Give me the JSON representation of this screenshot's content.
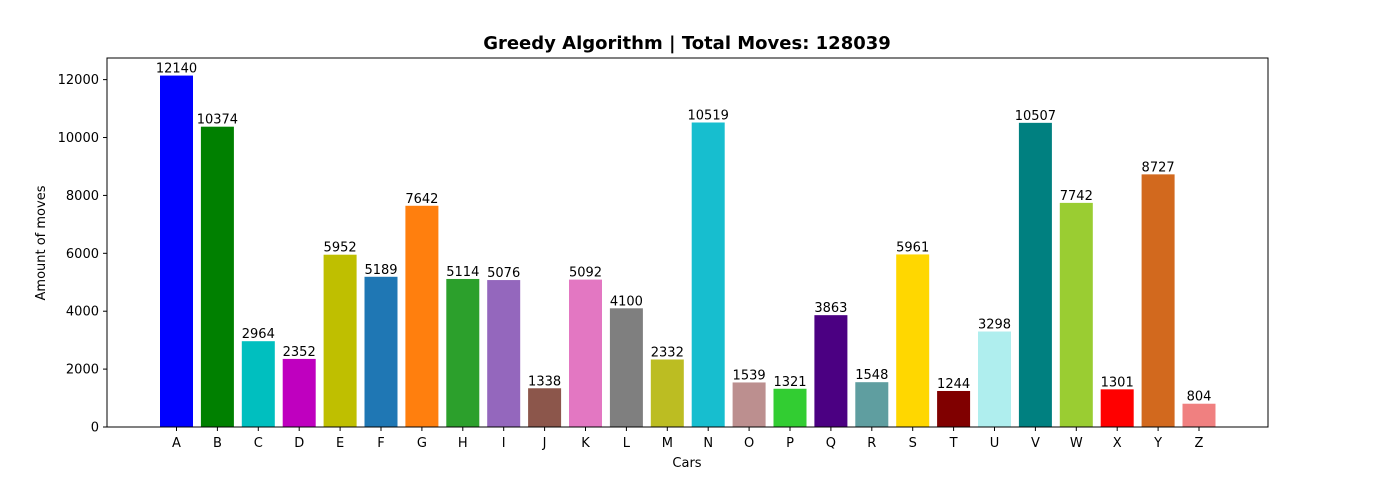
{
  "chart_data": {
    "type": "bar",
    "title": "Greedy Algorithm | Total Moves: 128039",
    "xlabel": "Cars",
    "ylabel": "Amount of moves",
    "categories": [
      "A",
      "B",
      "C",
      "D",
      "E",
      "F",
      "G",
      "H",
      "I",
      "J",
      "K",
      "L",
      "M",
      "N",
      "O",
      "P",
      "Q",
      "R",
      "S",
      "T",
      "U",
      "V",
      "W",
      "X",
      "Y",
      "Z"
    ],
    "values": [
      12140,
      10374,
      2964,
      2352,
      5952,
      5189,
      7642,
      5114,
      5076,
      1338,
      5092,
      4100,
      2332,
      10519,
      1539,
      1321,
      3863,
      1548,
      5961,
      1244,
      3298,
      10507,
      7742,
      1301,
      8727,
      804
    ],
    "colors": [
      "#0000ff",
      "#008000",
      "#00bfbf",
      "#bf00bf",
      "#bfbf00",
      "#1f77b4",
      "#ff7f0e",
      "#2ca02c",
      "#9467bd",
      "#8c564b",
      "#e377c2",
      "#7f7f7f",
      "#bcbd22",
      "#17becf",
      "#bc8f8f",
      "#32cd32",
      "#4b0082",
      "#5f9ea0",
      "#ffd700",
      "#800000",
      "#afeeee",
      "#008080",
      "#9acd32",
      "#ff0000",
      "#d2691e",
      "#f08080"
    ],
    "ylim": [
      0,
      12747
    ],
    "yticks": [
      0,
      2000,
      4000,
      6000,
      8000,
      10000,
      12000
    ],
    "grid": false,
    "legend": "none"
  }
}
